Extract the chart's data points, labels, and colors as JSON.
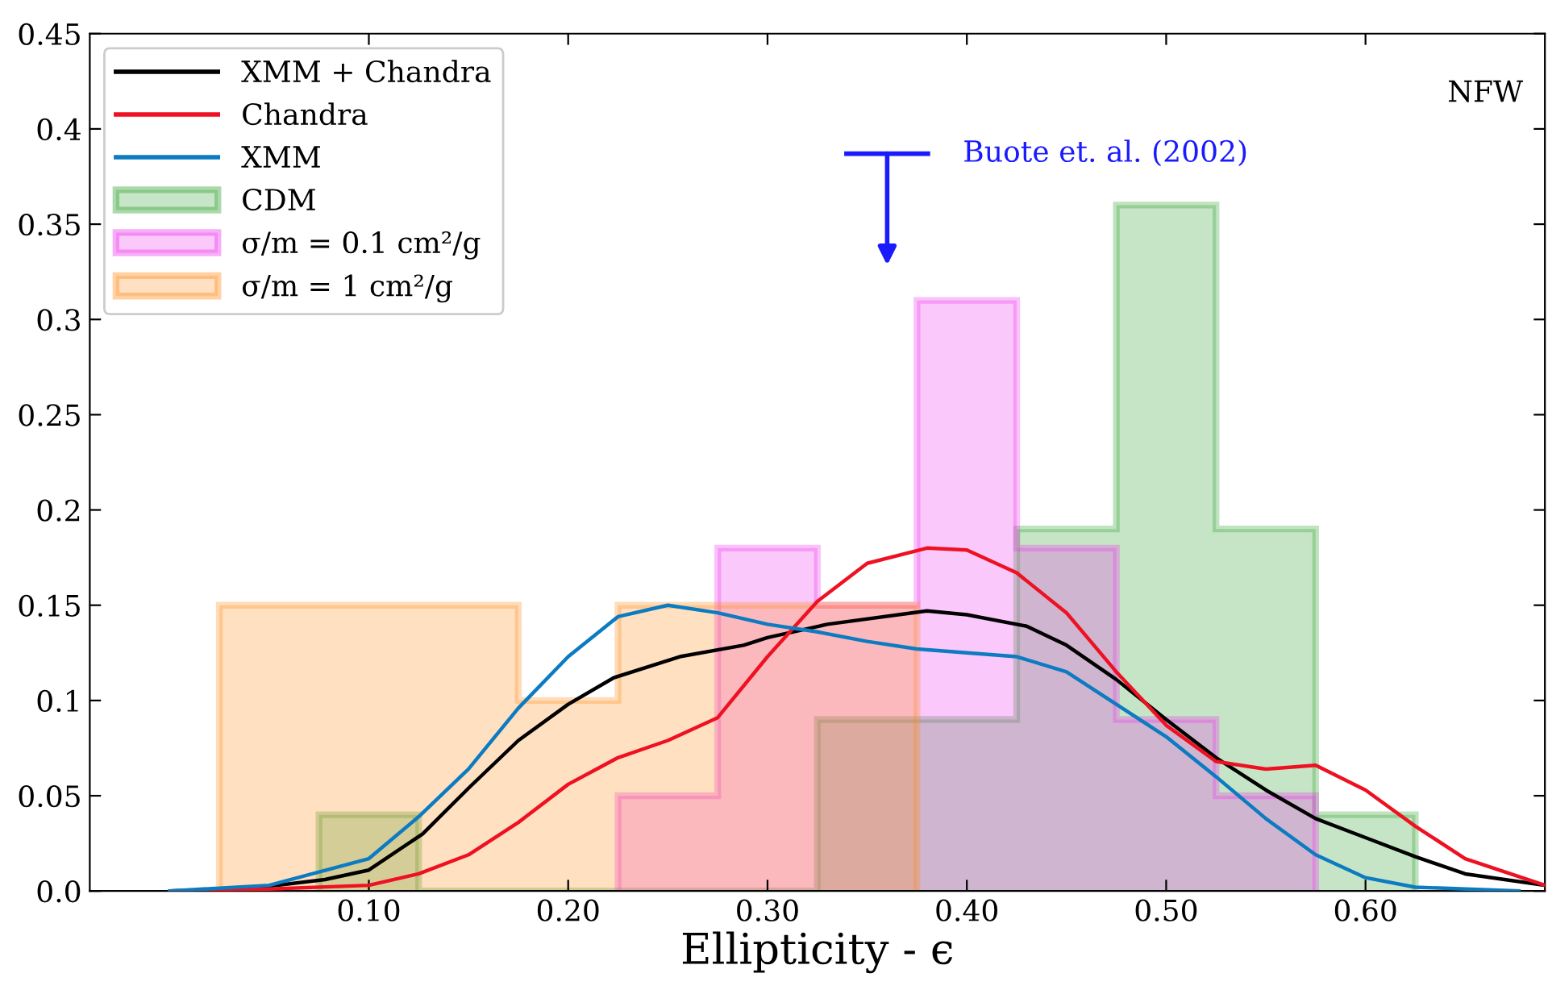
{
  "chart_data": {
    "xlabel": "Ellipticity - ϵ",
    "xlim": [
      -0.04,
      0.69
    ],
    "ylim": [
      0,
      0.45
    ],
    "xticks": [
      {
        "value": 0.1,
        "label": "0.10"
      },
      {
        "value": 0.2,
        "label": "0.20"
      },
      {
        "value": 0.3,
        "label": "0.30"
      },
      {
        "value": 0.4,
        "label": "0.40"
      },
      {
        "value": 0.5,
        "label": "0.50"
      },
      {
        "value": 0.6,
        "label": "0.60"
      }
    ],
    "type": "line",
    "yticks": [
      {
        "value": 0,
        "label": "0.0"
      },
      0.05,
      0.1,
      0.15,
      0.2,
      0.25,
      0.3,
      0.35,
      0.4,
      0.45
    ],
    "grid": false,
    "legend": "top left",
    "annotations": [
      "NFW",
      "Buote et. al. (2002)"
    ],
    "series": [
      {
        "name": "XMM + Chandra",
        "color": "#000000",
        "x": [
          0.0,
          0.038,
          0.078,
          0.1,
          0.127,
          0.151,
          0.175,
          0.2,
          0.223,
          0.256,
          0.288,
          0.3,
          0.33,
          0.38,
          0.4,
          0.43,
          0.45,
          0.475,
          0.5,
          0.525,
          0.55,
          0.575,
          0.6,
          0.625,
          0.65,
          0.69
        ],
        "values": [
          0.0,
          0.001,
          0.006,
          0.011,
          0.03,
          0.055,
          0.079,
          0.098,
          0.112,
          0.123,
          0.129,
          0.133,
          0.14,
          0.147,
          0.145,
          0.139,
          0.129,
          0.111,
          0.09,
          0.07,
          0.053,
          0.038,
          0.028,
          0.018,
          0.009,
          0.003
        ]
      },
      {
        "name": "Chandra",
        "color": "#ee1122",
        "x": [
          0.0,
          0.05,
          0.1,
          0.125,
          0.15,
          0.175,
          0.2,
          0.225,
          0.25,
          0.275,
          0.3,
          0.325,
          0.35,
          0.38,
          0.4,
          0.425,
          0.45,
          0.475,
          0.5,
          0.525,
          0.55,
          0.575,
          0.6,
          0.625,
          0.65,
          0.69
        ],
        "values": [
          0.0,
          0.001,
          0.003,
          0.009,
          0.019,
          0.036,
          0.056,
          0.07,
          0.079,
          0.091,
          0.123,
          0.152,
          0.172,
          0.18,
          0.179,
          0.167,
          0.146,
          0.115,
          0.087,
          0.068,
          0.064,
          0.066,
          0.053,
          0.034,
          0.017,
          0.003
        ]
      },
      {
        "name": "XMM",
        "color": "#0c7bc1",
        "x": [
          0.0,
          0.05,
          0.1,
          0.125,
          0.15,
          0.175,
          0.2,
          0.225,
          0.25,
          0.275,
          0.3,
          0.325,
          0.35,
          0.375,
          0.4,
          0.425,
          0.45,
          0.475,
          0.5,
          0.525,
          0.55,
          0.575,
          0.6,
          0.625,
          0.677
        ],
        "values": [
          0.0,
          0.003,
          0.017,
          0.039,
          0.064,
          0.096,
          0.123,
          0.144,
          0.15,
          0.146,
          0.14,
          0.136,
          0.131,
          0.127,
          0.125,
          0.123,
          0.115,
          0.098,
          0.081,
          0.06,
          0.038,
          0.019,
          0.007,
          0.002,
          0.0
        ]
      },
      {
        "type": "histogram",
        "name": "CDM",
        "color": "#2ca02c",
        "bins": [
          0.075,
          0.125,
          0.175,
          0.225,
          0.275,
          0.325,
          0.375,
          0.425,
          0.475,
          0.525,
          0.575,
          0.625
        ],
        "values": [
          0.04,
          0,
          0,
          0,
          0,
          0.09,
          0.09,
          0.19,
          0.36,
          0.19,
          0.04
        ]
      },
      {
        "type": "histogram",
        "name": "σ/m = 0.1 cm²/g",
        "color": "#ee33ee",
        "bins": [
          0.225,
          0.275,
          0.325,
          0.375,
          0.425,
          0.475,
          0.525,
          0.575
        ],
        "values": [
          0.05,
          0.18,
          0.15,
          0.31,
          0.18,
          0.09,
          0.05
        ]
      },
      {
        "type": "histogram",
        "name": "σ/m = 1 cm²/g",
        "color": "#ff8c1a",
        "bins": [
          0.025,
          0.075,
          0.125,
          0.175,
          0.225,
          0.275,
          0.325,
          0.375
        ],
        "values": [
          0.15,
          0.15,
          0.15,
          0.1,
          0.15,
          0.15,
          0.15
        ]
      }
    ]
  }
}
